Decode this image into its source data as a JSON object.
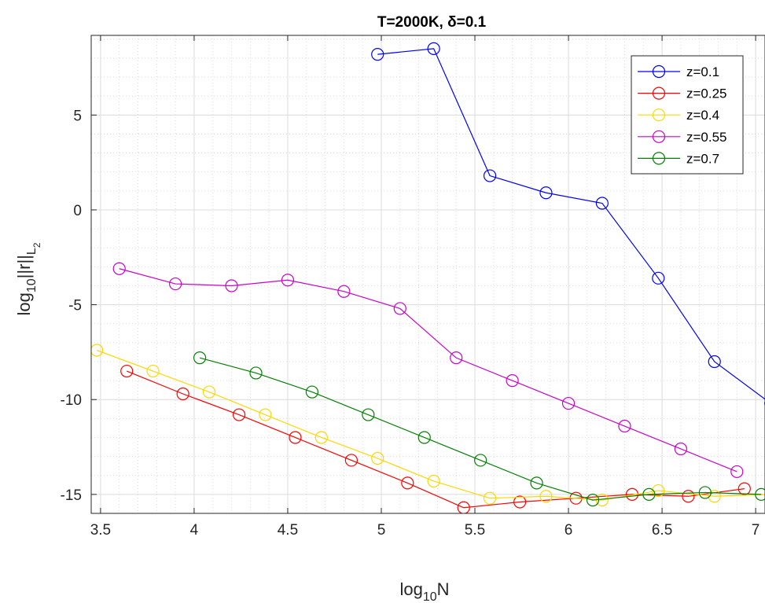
{
  "chart_data": {
    "type": "line",
    "title": "T=2000K,  δ=0.1",
    "xlabel": "log10N",
    "ylabel": "log10||r||L2",
    "xlim": [
      3.45,
      7.05
    ],
    "ylim": [
      -16,
      9.2
    ],
    "xticks": [
      3.5,
      4,
      4.5,
      5,
      5.5,
      6,
      6.5,
      7
    ],
    "xtick_labels": [
      "3.5",
      "4",
      "4.5",
      "5",
      "5.5",
      "6",
      "6.5",
      "7"
    ],
    "yticks": [
      -15,
      -10,
      -5,
      0,
      5
    ],
    "ytick_labels": [
      "-15",
      "-10",
      "-5",
      "0",
      "5"
    ],
    "grid": true,
    "minor_grid": true,
    "legend_position": "top-right",
    "marker": "circle",
    "series": [
      {
        "name": "z=0.1",
        "color": "#0000ff",
        "x": [
          4.98,
          5.28,
          5.58,
          5.88,
          6.18,
          6.48,
          6.78,
          7.08
        ],
        "y": [
          8.2,
          8.5,
          1.8,
          0.9,
          0.35,
          -3.6,
          -8.0,
          -10.2
        ]
      },
      {
        "name": "z=0.25",
        "color": "#ff0000",
        "x": [
          3.64,
          3.94,
          4.24,
          4.54,
          4.84,
          5.14,
          5.44,
          5.74,
          6.04,
          6.34,
          6.64,
          6.94
        ],
        "y": [
          -8.5,
          -9.7,
          -10.8,
          -12.0,
          -13.2,
          -14.4,
          -15.7,
          -15.4,
          -15.2,
          -15.0,
          -15.1,
          -14.7
        ]
      },
      {
        "name": "z=0.4",
        "color": "#ffd700",
        "x": [
          3.48,
          3.78,
          4.08,
          4.38,
          4.68,
          4.98,
          5.28,
          5.58,
          5.88,
          6.18,
          6.48,
          6.78,
          7.08
        ],
        "y": [
          -7.4,
          -8.5,
          -9.6,
          -10.8,
          -12.0,
          -13.1,
          -14.3,
          -15.2,
          -15.1,
          -15.3,
          -14.8,
          -15.1,
          -15.0
        ]
      },
      {
        "name": "z=0.55",
        "color": "#cc00cc",
        "x": [
          3.6,
          3.9,
          4.2,
          4.5,
          4.8,
          5.1,
          5.4,
          5.7,
          6.0,
          6.3,
          6.6,
          6.9
        ],
        "y": [
          -3.1,
          -3.9,
          -4.0,
          -3.7,
          -4.3,
          -5.2,
          -7.8,
          -9.0,
          -10.2,
          -11.4,
          -12.6,
          -13.8
        ]
      },
      {
        "name": "z=0.7",
        "color": "#008000",
        "x": [
          4.03,
          4.33,
          4.63,
          4.93,
          5.23,
          5.53,
          5.83,
          6.13,
          6.43,
          6.73,
          7.03
        ],
        "y": [
          -7.8,
          -8.6,
          -9.6,
          -10.8,
          -12.0,
          -13.2,
          -14.4,
          -15.3,
          -15.0,
          -14.9,
          -15.0
        ]
      }
    ]
  }
}
